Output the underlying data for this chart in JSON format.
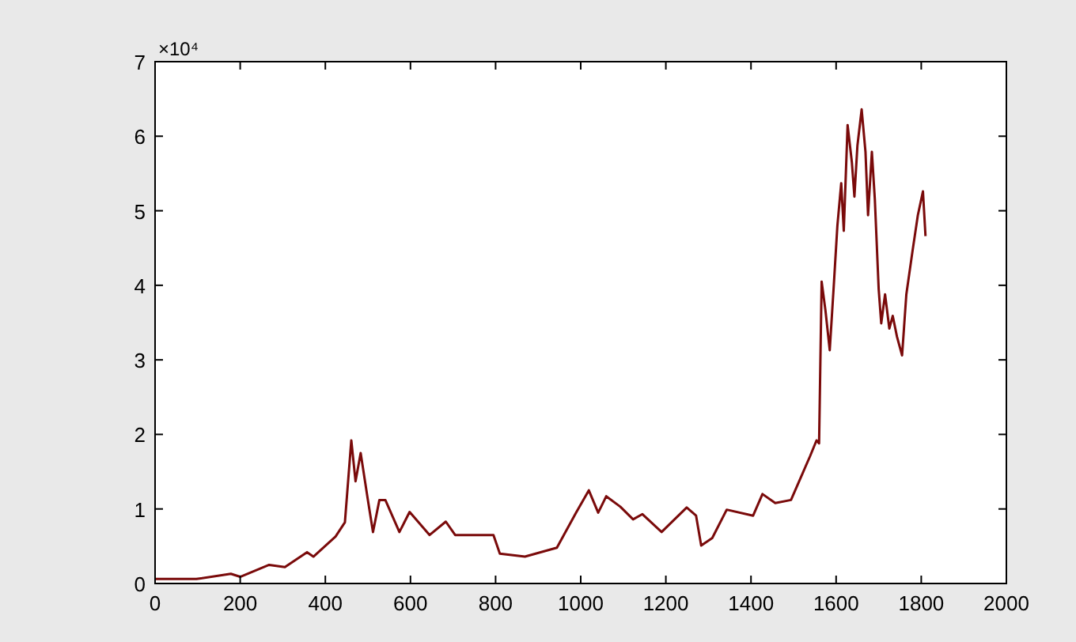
{
  "chart_data": {
    "type": "line",
    "annotations": [
      "×10⁴"
    ],
    "x": [
      0,
      97,
      178,
      200,
      268,
      305,
      357,
      372,
      424,
      446,
      461,
      471,
      483,
      500,
      512,
      527,
      541,
      574,
      598,
      645,
      683,
      705,
      795,
      810,
      869,
      944,
      989,
      1019,
      1041,
      1060,
      1093,
      1123,
      1145,
      1190,
      1249,
      1271,
      1283,
      1309,
      1343,
      1405,
      1427,
      1457,
      1494,
      1539,
      1554,
      1560,
      1566,
      1575,
      1585,
      1594,
      1603,
      1612,
      1618,
      1627,
      1637,
      1643,
      1650,
      1660,
      1669,
      1675,
      1684,
      1691,
      1700,
      1706,
      1715,
      1725,
      1733,
      1743,
      1755,
      1765,
      1779,
      1792,
      1804,
      1810
    ],
    "series": [
      {
        "color": "#7a0a0a",
        "values": [
          0.06,
          0.06,
          0.13,
          0.09,
          0.25,
          0.22,
          0.42,
          0.36,
          0.63,
          0.82,
          1.92,
          1.37,
          1.75,
          1.12,
          0.69,
          1.12,
          1.12,
          0.69,
          0.96,
          0.65,
          0.83,
          0.65,
          0.65,
          0.4,
          0.36,
          0.48,
          0.95,
          1.25,
          0.95,
          1.17,
          1.03,
          0.86,
          0.93,
          0.69,
          1.02,
          0.91,
          0.51,
          0.61,
          0.99,
          0.91,
          1.2,
          1.08,
          1.12,
          1.71,
          1.92,
          1.88,
          4.05,
          3.66,
          3.13,
          3.95,
          4.8,
          5.37,
          4.73,
          6.15,
          5.65,
          5.19,
          5.87,
          6.36,
          5.79,
          4.94,
          5.79,
          5.15,
          3.95,
          3.49,
          3.88,
          3.42,
          3.59,
          3.31,
          3.06,
          3.88,
          4.44,
          4.94,
          5.26,
          4.66
        ]
      }
    ],
    "xlim": [
      0,
      2000
    ],
    "xticks": [
      0,
      200,
      400,
      600,
      800,
      1000,
      1200,
      1400,
      1600,
      1800,
      2000
    ],
    "ylim": [
      0,
      7
    ],
    "yticks": [
      0,
      1,
      2,
      3,
      4,
      5,
      6,
      7
    ],
    "grid": false,
    "marker": "none",
    "line_style": "solid"
  }
}
